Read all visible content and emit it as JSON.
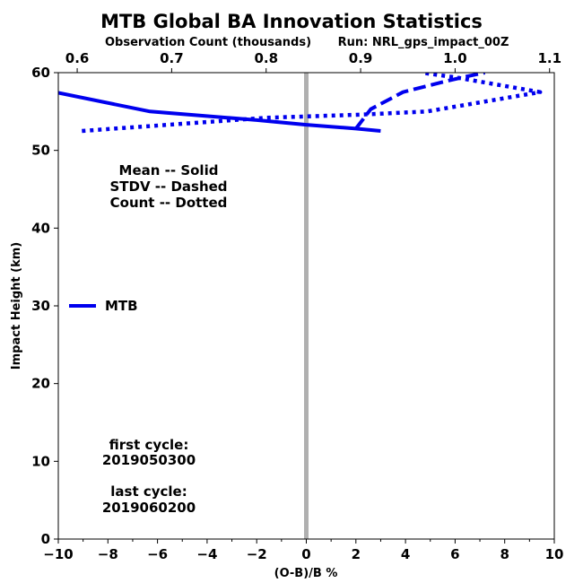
{
  "chart_data": {
    "type": "line",
    "title": "MTB Global BA Innovation Statistics",
    "xlabel": "(O-B)/B %",
    "ylabel": "Impact Height (km)",
    "x2label": "Observation Count (thousands)",
    "run_label": "Run: NRL_gps_impact_00Z",
    "xlim": [
      -10,
      10
    ],
    "ylim": [
      0,
      60
    ],
    "x2lim": [
      0.58,
      1.105
    ],
    "xticks": [
      -10,
      -8,
      -6,
      -4,
      -2,
      0,
      2,
      4,
      6,
      8,
      10
    ],
    "yticks": [
      0,
      10,
      20,
      30,
      40,
      50,
      60
    ],
    "x2ticks": [
      0.6,
      0.7,
      0.8,
      0.9,
      1.0,
      1.1
    ],
    "xtick_labels": [
      "−10",
      "−8",
      "−6",
      "−4",
      "−2",
      "0",
      "2",
      "4",
      "6",
      "8",
      "10"
    ],
    "ytick_labels": [
      "0",
      "10",
      "20",
      "30",
      "40",
      "50",
      "60"
    ],
    "x2tick_labels": [
      "0.6",
      "0.7",
      "0.8",
      "0.9",
      "1.0",
      "1.1"
    ],
    "reference_line_x": 0,
    "grid": false,
    "series": [
      {
        "name": "MTB",
        "statistic": "mean",
        "style": "solid",
        "axis": "bottom",
        "color": "#0000ee",
        "points": [
          [
            -10,
            57.4
          ],
          [
            -6.3,
            55.0
          ],
          [
            -2,
            53.9
          ],
          [
            0,
            53.3
          ],
          [
            2,
            52.8
          ],
          [
            3,
            52.5
          ]
        ]
      },
      {
        "name": "MTB",
        "statistic": "stdv",
        "style": "dashed",
        "axis": "bottom",
        "color": "#0000ee",
        "points": [
          [
            2.0,
            52.8
          ],
          [
            2.6,
            55.3
          ],
          [
            3.9,
            57.5
          ],
          [
            5.5,
            58.8
          ],
          [
            6.3,
            59.4
          ],
          [
            7.2,
            60.0
          ]
        ]
      },
      {
        "name": "MTB",
        "statistic": "count",
        "style": "dotted",
        "axis": "top",
        "color": "#0000ee",
        "points": [
          [
            0.605,
            52.5
          ],
          [
            0.8,
            54.2
          ],
          [
            0.9,
            54.6
          ],
          [
            0.97,
            55.0
          ],
          [
            1.09,
            57.5
          ],
          [
            1.0,
            59.4
          ],
          [
            0.965,
            60.0
          ]
        ]
      }
    ],
    "legend": {
      "entries": [
        "MTB"
      ],
      "placement": "middle-left"
    },
    "line_styles_note": [
      "Mean -- Solid",
      "STDV -- Dashed",
      "Count -- Dotted"
    ],
    "cycle_info": {
      "first_label": "first cycle:",
      "first_value": "2019050300",
      "last_label": "last cycle:",
      "last_value": "2019060200"
    }
  }
}
